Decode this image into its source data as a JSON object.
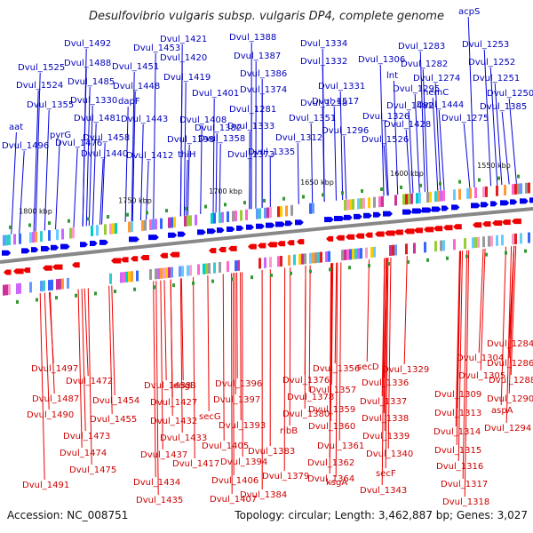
{
  "title": "Desulfovibrio vulgaris subsp. vulgaris DP4, complete genome",
  "footer": {
    "accession": "Accession: NC_008751",
    "info": "Topology: circular; Length: 3,462,887 bp; Genes: 3,027"
  },
  "ticks": [
    "1800 kbp",
    "1750 kbp",
    "1700 kbp",
    "1650 kbp",
    "1600 kbp",
    "1550 kbp"
  ],
  "top_labels": [
    "acpS",
    "Dvul_1492",
    "Dvul_1453",
    "Dvul_1421",
    "Dvul_1388",
    "Dvul_1334",
    "Dvul_1283",
    "Dvul_1253",
    "Dvul_1488",
    "Dvul_1420",
    "Dvul_1387",
    "Dvul_1332",
    "Dvul_1306",
    "Dvul_1282",
    "Dvul_1252",
    "Dvul_1525",
    "Dvul_1451",
    "Dvul_1274",
    "Dvul_1251",
    "Dvul_1485",
    "Dvul_1419",
    "Dvul_1386",
    "Dvul_1331",
    "lnt",
    "Dvul_1524",
    "Dvul_1448",
    "Dvul_1295",
    "hemC",
    "Dvul_1250",
    "Dvul_1401",
    "Dvul_1374",
    "Dvul_1517",
    "Dvul_1482",
    "Dvul_1444",
    "Dvul_1385",
    "Dvul_1355",
    "Dvul_1330",
    "dapF",
    "Dvul_1281",
    "Dvul_1258",
    "Dvul_1481",
    "Dvul_1443",
    "Dvul_1408",
    "Dvul_1351",
    "Dvul_1326",
    "Dvul_1275",
    "aat",
    "pyrG",
    "Dvul_1458",
    "Dvul_1382",
    "Dvul_1333",
    "Dvul_1296",
    "Dvul_1428",
    "Dvul_1398",
    "Dvul_1358",
    "Dvul_1312",
    "Dvul_1526",
    "Dvul_1496",
    "Dvul_1476",
    "Dvul_1440",
    "Dvul_1412",
    "thiH",
    "Dvul_1373",
    "Dvul_1335"
  ],
  "bottom_labels": [
    "Dvul_1284",
    "Dvul_1304",
    "Dvul_1286",
    "Dvul_1356",
    "secD",
    "Dvul_1329",
    "Dvul_1305",
    "Dvul_1288",
    "Dvul_1497",
    "Dvul_1376",
    "Dvul_1336",
    "Dvul_1309",
    "Dvul_1290",
    "Dvul_1472",
    "Dvul_1438",
    "engB",
    "Dvul_1396",
    "Dvul_1357",
    "Dvul_1487",
    "Dvul_1378",
    "Dvul_1337",
    "aspA",
    "Dvul_1454",
    "Dvul_1427",
    "Dvul_1397",
    "Dvul_1313",
    "Dvul_1490",
    "Dvul_1380",
    "Dvul_1359",
    "Dvul_1338",
    "Dvul_1455",
    "Dvul_1432",
    "secG",
    "Dvul_1393",
    "Dvul_1294",
    "Dvul_1314",
    "Dvul_1360",
    "ribB",
    "Dvul_1473",
    "Dvul_1433",
    "Dvul_1339",
    "Dvul_1405",
    "Dvul_1361",
    "Dvul_1315",
    "Dvul_1383",
    "Dvul_1474",
    "Dvul_1437",
    "Dvul_1417",
    "Dvul_1394",
    "Dvul_1340",
    "Dvul_1362",
    "Dvul_1475",
    "Dvul_1316",
    "Dvul_1379",
    "Dvul_1406",
    "secF",
    "Dvul_1364",
    "Dvul_1491",
    "Dvul_1434",
    "ksgA",
    "Dvul_1317",
    "Dvul_1384",
    "Dvul_1343",
    "Dvul_1435",
    "Dvul_1407",
    "Dvul_1318"
  ],
  "colors": {
    "forward": "#0000ee",
    "reverse": "#ee0000",
    "backbone": "#888888",
    "tick_mark": "#339933"
  }
}
